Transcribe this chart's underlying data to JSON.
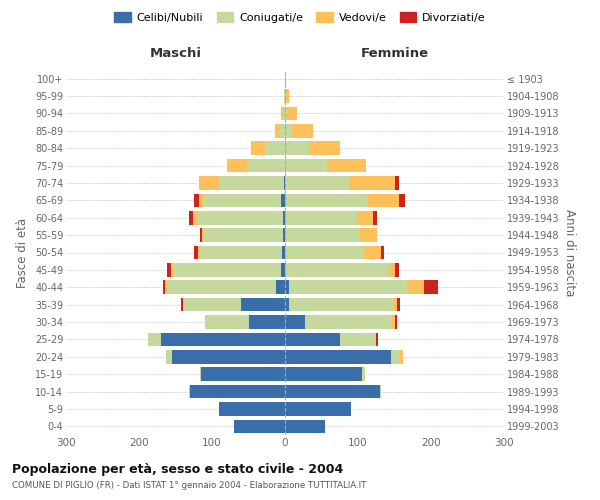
{
  "age_groups": [
    "0-4",
    "5-9",
    "10-14",
    "15-19",
    "20-24",
    "25-29",
    "30-34",
    "35-39",
    "40-44",
    "45-49",
    "50-54",
    "55-59",
    "60-64",
    "65-69",
    "70-74",
    "75-79",
    "80-84",
    "85-89",
    "90-94",
    "95-99",
    "100+"
  ],
  "birth_years": [
    "1999-2003",
    "1994-1998",
    "1989-1993",
    "1984-1988",
    "1979-1983",
    "1974-1978",
    "1969-1973",
    "1964-1968",
    "1959-1963",
    "1954-1958",
    "1949-1953",
    "1944-1948",
    "1939-1943",
    "1934-1938",
    "1929-1933",
    "1924-1928",
    "1919-1923",
    "1914-1918",
    "1909-1913",
    "1904-1908",
    "≤ 1903"
  ],
  "male": {
    "celibi": [
      70,
      90,
      130,
      115,
      155,
      170,
      50,
      60,
      12,
      5,
      4,
      3,
      3,
      5,
      2,
      0,
      0,
      0,
      0,
      0,
      0
    ],
    "coniugati": [
      0,
      0,
      2,
      2,
      8,
      18,
      60,
      78,
      150,
      148,
      112,
      108,
      118,
      108,
      88,
      52,
      28,
      7,
      3,
      1,
      0
    ],
    "vedovi": [
      0,
      0,
      0,
      0,
      0,
      0,
      0,
      2,
      2,
      3,
      3,
      3,
      5,
      5,
      28,
      28,
      18,
      7,
      2,
      0,
      0
    ],
    "divorziati": [
      0,
      0,
      0,
      0,
      0,
      0,
      0,
      2,
      3,
      5,
      5,
      2,
      5,
      7,
      0,
      0,
      0,
      0,
      0,
      0,
      0
    ]
  },
  "female": {
    "nubili": [
      55,
      90,
      130,
      105,
      145,
      75,
      28,
      5,
      5,
      0,
      0,
      0,
      0,
      0,
      0,
      0,
      0,
      0,
      0,
      0,
      0
    ],
    "coniugate": [
      0,
      0,
      2,
      4,
      13,
      50,
      118,
      143,
      162,
      143,
      108,
      103,
      98,
      113,
      88,
      58,
      33,
      10,
      3,
      0,
      0
    ],
    "vedove": [
      0,
      0,
      0,
      0,
      4,
      0,
      5,
      5,
      23,
      8,
      23,
      23,
      23,
      43,
      63,
      53,
      43,
      28,
      13,
      5,
      1
    ],
    "divorziate": [
      0,
      0,
      0,
      0,
      0,
      3,
      2,
      5,
      20,
      5,
      5,
      0,
      5,
      8,
      5,
      0,
      0,
      0,
      0,
      0,
      0
    ]
  },
  "colors": {
    "celibi": "#3a6ea8",
    "coniugati": "#c5d89e",
    "vedovi": "#ffc05a",
    "divorziati": "#cc2222"
  },
  "title": "Popolazione per età, sesso e stato civile - 2004",
  "subtitle": "COMUNE DI PIGLIO (FR) - Dati ISTAT 1° gennaio 2004 - Elaborazione TUTTITALIA.IT",
  "xlabel_left": "Maschi",
  "xlabel_right": "Femmine",
  "ylabel_left": "Fasce di età",
  "ylabel_right": "Anni di nascita",
  "xlim": 300,
  "legend_labels": [
    "Celibi/Nubili",
    "Coniugati/e",
    "Vedovi/e",
    "Divorziati/e"
  ],
  "background_color": "#ffffff",
  "grid_color": "#cccccc"
}
